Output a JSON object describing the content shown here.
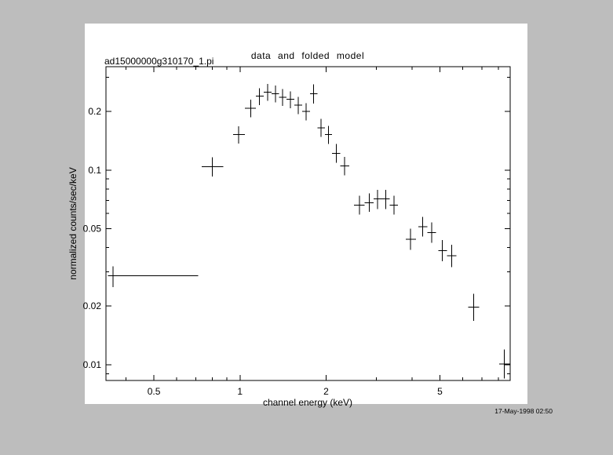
{
  "colors": {
    "background": "#bdbdbd",
    "panel": "#ffffff",
    "ink": "#000000"
  },
  "dataset_label": "ad15000000g310170_1.pi",
  "timestamp": "17-May-1998 02:50",
  "chart_data": {
    "type": "scatter",
    "marker": "cross-with-error-bars",
    "title": "data and folded model",
    "xlabel": "channel energy (keV)",
    "ylabel": "normalized counts/sec/keV",
    "xscale": "log",
    "yscale": "log",
    "xlim": [
      0.34,
      8.8
    ],
    "ylim": [
      0.0083,
      0.34
    ],
    "grid": false,
    "legend": "none",
    "x_major_ticks": [
      {
        "v": 0.5,
        "label": "0.5"
      },
      {
        "v": 1,
        "label": "1"
      },
      {
        "v": 2,
        "label": "2"
      },
      {
        "v": 5,
        "label": "5"
      }
    ],
    "x_minor_ticks": [
      0.4,
      0.6,
      0.7,
      0.8,
      0.9,
      3,
      4,
      6,
      7,
      8
    ],
    "y_major_ticks": [
      {
        "v": 0.01,
        "label": "0.01"
      },
      {
        "v": 0.02,
        "label": "0.02"
      },
      {
        "v": 0.05,
        "label": "0.05"
      },
      {
        "v": 0.1,
        "label": "0.1"
      },
      {
        "v": 0.2,
        "label": "0.2"
      }
    ],
    "y_minor_ticks": [
      0.009,
      0.03,
      0.04,
      0.06,
      0.07,
      0.08,
      0.09,
      0.3
    ],
    "points": [
      {
        "x": 0.36,
        "xlo": 0.345,
        "xhi": 0.715,
        "y": 0.0286,
        "ylo": 0.025,
        "yhi": 0.032
      },
      {
        "x": 0.8,
        "xlo": 0.735,
        "xhi": 0.875,
        "y": 0.104,
        "ylo": 0.0925,
        "yhi": 0.1165
      },
      {
        "x": 0.99,
        "xlo": 0.945,
        "xhi": 1.04,
        "y": 0.152,
        "ylo": 0.137,
        "yhi": 0.168
      },
      {
        "x": 1.09,
        "xlo": 1.04,
        "xhi": 1.135,
        "y": 0.208,
        "ylo": 0.187,
        "yhi": 0.23
      },
      {
        "x": 1.17,
        "xlo": 1.135,
        "xhi": 1.21,
        "y": 0.24,
        "ylo": 0.216,
        "yhi": 0.264
      },
      {
        "x": 1.25,
        "xlo": 1.21,
        "xhi": 1.29,
        "y": 0.252,
        "ylo": 0.227,
        "yhi": 0.277
      },
      {
        "x": 1.33,
        "xlo": 1.29,
        "xhi": 1.37,
        "y": 0.247,
        "ylo": 0.223,
        "yhi": 0.272
      },
      {
        "x": 1.41,
        "xlo": 1.37,
        "xhi": 1.455,
        "y": 0.237,
        "ylo": 0.214,
        "yhi": 0.261
      },
      {
        "x": 1.5,
        "xlo": 1.455,
        "xhi": 1.55,
        "y": 0.231,
        "ylo": 0.208,
        "yhi": 0.254
      },
      {
        "x": 1.6,
        "xlo": 1.55,
        "xhi": 1.65,
        "y": 0.216,
        "ylo": 0.194,
        "yhi": 0.238
      },
      {
        "x": 1.7,
        "xlo": 1.65,
        "xhi": 1.755,
        "y": 0.2,
        "ylo": 0.18,
        "yhi": 0.221
      },
      {
        "x": 1.81,
        "xlo": 1.755,
        "xhi": 1.865,
        "y": 0.247,
        "ylo": 0.22,
        "yhi": 0.276
      },
      {
        "x": 1.92,
        "xlo": 1.865,
        "xhi": 1.98,
        "y": 0.165,
        "ylo": 0.148,
        "yhi": 0.183
      },
      {
        "x": 2.04,
        "xlo": 1.98,
        "xhi": 2.1,
        "y": 0.152,
        "ylo": 0.136,
        "yhi": 0.169
      },
      {
        "x": 2.17,
        "xlo": 2.1,
        "xhi": 2.24,
        "y": 0.122,
        "ylo": 0.109,
        "yhi": 0.136
      },
      {
        "x": 2.32,
        "xlo": 2.24,
        "xhi": 2.41,
        "y": 0.105,
        "ylo": 0.094,
        "yhi": 0.117
      },
      {
        "x": 2.62,
        "xlo": 2.5,
        "xhi": 2.73,
        "y": 0.066,
        "ylo": 0.059,
        "yhi": 0.074
      },
      {
        "x": 2.83,
        "xlo": 2.73,
        "xhi": 2.93,
        "y": 0.068,
        "ylo": 0.061,
        "yhi": 0.076
      },
      {
        "x": 3.03,
        "xlo": 2.93,
        "xhi": 3.13,
        "y": 0.071,
        "ylo": 0.063,
        "yhi": 0.079
      },
      {
        "x": 3.23,
        "xlo": 3.13,
        "xhi": 3.34,
        "y": 0.071,
        "ylo": 0.063,
        "yhi": 0.079
      },
      {
        "x": 3.45,
        "xlo": 3.34,
        "xhi": 3.57,
        "y": 0.066,
        "ylo": 0.059,
        "yhi": 0.074
      },
      {
        "x": 3.95,
        "xlo": 3.8,
        "xhi": 4.12,
        "y": 0.0442,
        "ylo": 0.039,
        "yhi": 0.05
      },
      {
        "x": 4.35,
        "xlo": 4.2,
        "xhi": 4.52,
        "y": 0.0511,
        "ylo": 0.0455,
        "yhi": 0.0574
      },
      {
        "x": 4.68,
        "xlo": 4.52,
        "xhi": 4.85,
        "y": 0.0478,
        "ylo": 0.0424,
        "yhi": 0.0538
      },
      {
        "x": 5.1,
        "xlo": 4.93,
        "xhi": 5.29,
        "y": 0.0386,
        "ylo": 0.034,
        "yhi": 0.0438
      },
      {
        "x": 5.5,
        "xlo": 5.29,
        "xhi": 5.71,
        "y": 0.0363,
        "ylo": 0.0318,
        "yhi": 0.0414
      },
      {
        "x": 6.56,
        "xlo": 6.28,
        "xhi": 6.86,
        "y": 0.0198,
        "ylo": 0.0168,
        "yhi": 0.0232
      },
      {
        "x": 8.4,
        "xlo": 8.05,
        "xhi": 8.8,
        "y": 0.0101,
        "ylo": 0.0085,
        "yhi": 0.012
      }
    ]
  }
}
